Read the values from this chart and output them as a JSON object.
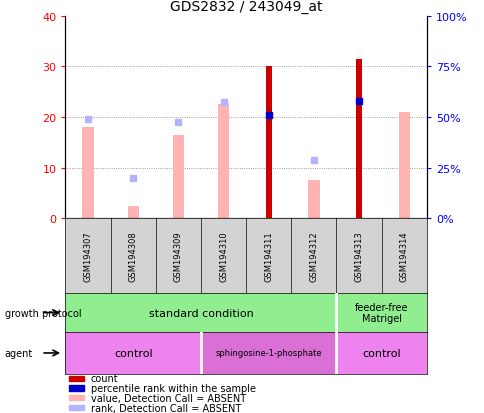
{
  "title": "GDS2832 / 243049_at",
  "samples": [
    "GSM194307",
    "GSM194308",
    "GSM194309",
    "GSM194310",
    "GSM194311",
    "GSM194312",
    "GSM194313",
    "GSM194314"
  ],
  "count_values": [
    null,
    null,
    null,
    null,
    30.0,
    null,
    31.5,
    null
  ],
  "rank_values_pct": [
    null,
    null,
    null,
    null,
    51.0,
    null,
    58.0,
    null
  ],
  "absent_value": [
    18.0,
    2.5,
    16.5,
    22.5,
    null,
    7.5,
    null,
    21.0
  ],
  "absent_rank_pct": [
    null,
    20.0,
    null,
    null,
    null,
    29.0,
    null,
    null
  ],
  "absent_rank2_pct": [
    49.0,
    null,
    47.5,
    57.5,
    null,
    null,
    null,
    null
  ],
  "ylim_left": [
    0,
    40
  ],
  "ylim_right": [
    0,
    100
  ],
  "yticks_left": [
    0,
    10,
    20,
    30,
    40
  ],
  "yticks_right": [
    0,
    25,
    50,
    75,
    100
  ],
  "ytick_labels_left": [
    "0",
    "10",
    "20",
    "30",
    "40"
  ],
  "ytick_labels_right": [
    "0%",
    "25%",
    "50%",
    "75%",
    "100%"
  ],
  "color_count": "#cc0000",
  "color_rank": "#0000cc",
  "color_absent_value": "#ffb3b3",
  "color_absent_rank": "#b3b3ff",
  "legend_items": [
    {
      "label": "count",
      "color": "#cc0000"
    },
    {
      "label": "percentile rank within the sample",
      "color": "#0000cc"
    },
    {
      "label": "value, Detection Call = ABSENT",
      "color": "#ffb3b3"
    },
    {
      "label": "rank, Detection Call = ABSENT",
      "color": "#b3b3ff"
    }
  ]
}
